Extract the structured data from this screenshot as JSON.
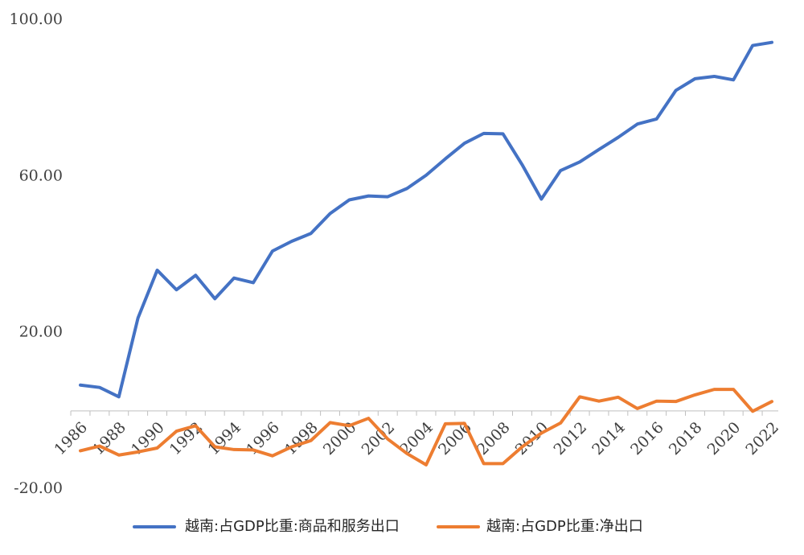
{
  "chart_data": {
    "type": "line",
    "title": "",
    "xlabel": "",
    "ylabel": "",
    "x": [
      1986,
      1987,
      1988,
      1989,
      1990,
      1991,
      1992,
      1993,
      1994,
      1995,
      1996,
      1997,
      1998,
      1999,
      2000,
      2001,
      2002,
      2003,
      2004,
      2005,
      2006,
      2007,
      2008,
      2009,
      2010,
      2011,
      2012,
      2013,
      2014,
      2015,
      2016,
      2017,
      2018,
      2019,
      2020,
      2021,
      2022
    ],
    "x_ticks": [
      "1986",
      "1988",
      "1990",
      "1992",
      "1994",
      "1996",
      "1998",
      "2000",
      "2002",
      "2004",
      "2006",
      "2008",
      "2010",
      "2012",
      "2014",
      "2016",
      "2018",
      "2020",
      "2022"
    ],
    "y_ticks": [
      "100.00",
      "60.00",
      "20.00",
      "-20.00"
    ],
    "ylim": [
      -20,
      100
    ],
    "grid": false,
    "legend_position": "bottom",
    "series": [
      {
        "name": "越南:占GDP比重:商品和服务出口",
        "color": "#4472C4",
        "values": [
          6.6,
          6.0,
          3.6,
          23.8,
          36.0,
          31.0,
          34.7,
          28.7,
          34.0,
          32.8,
          40.9,
          43.4,
          45.4,
          50.5,
          54.0,
          55.0,
          54.8,
          56.9,
          60.3,
          64.5,
          68.5,
          71.0,
          70.9,
          63.0,
          54.2,
          61.5,
          63.7,
          66.9,
          70.0,
          73.4,
          74.7,
          82.0,
          85.0,
          85.6,
          84.7,
          93.5,
          94.3
        ]
      },
      {
        "name": "越南:占GDP比重:净出口",
        "color": "#ED7D31",
        "values": [
          -10.2,
          -9.0,
          -11.3,
          -10.5,
          -9.5,
          -5.2,
          -3.8,
          -9.2,
          -9.9,
          -10.0,
          -11.5,
          -9.2,
          -7.6,
          -3.0,
          -3.8,
          -1.9,
          -7.2,
          -10.9,
          -13.8,
          -3.3,
          -3.2,
          -13.5,
          -13.5,
          -9.2,
          -5.7,
          -3.1,
          3.6,
          2.5,
          3.5,
          0.6,
          2.5,
          2.4,
          4.1,
          5.5,
          5.5,
          -0.1,
          2.4
        ]
      }
    ]
  }
}
